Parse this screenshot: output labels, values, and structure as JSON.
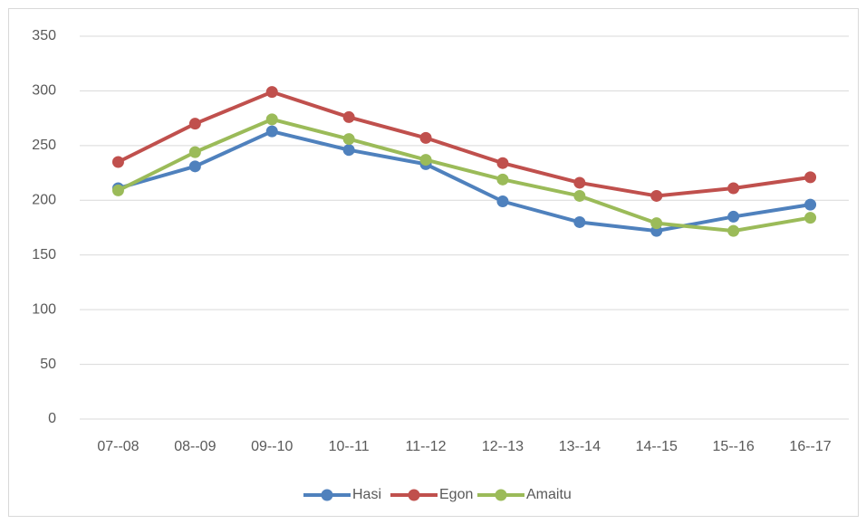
{
  "chart_data": {
    "type": "line",
    "categories": [
      "07--08",
      "08--09",
      "09--10",
      "10--11",
      "11--12",
      "12--13",
      "13--14",
      "14--15",
      "15--16",
      "16--17"
    ],
    "series": [
      {
        "name": "Hasi",
        "color": "#4f81bd",
        "values": [
          211,
          231,
          263,
          246,
          233,
          199,
          180,
          172,
          185,
          196
        ]
      },
      {
        "name": "Egon",
        "color": "#c0504d",
        "values": [
          235,
          270,
          299,
          276,
          257,
          234,
          216,
          204,
          211,
          221
        ]
      },
      {
        "name": "Amaitu",
        "color": "#9bbb59",
        "values": [
          209,
          244,
          274,
          256,
          237,
          219,
          204,
          179,
          172,
          184
        ]
      }
    ],
    "ylim": [
      0,
      350
    ],
    "yticks": [
      0,
      50,
      100,
      150,
      200,
      250,
      300,
      350
    ],
    "grid": true,
    "legend": "bottom"
  }
}
